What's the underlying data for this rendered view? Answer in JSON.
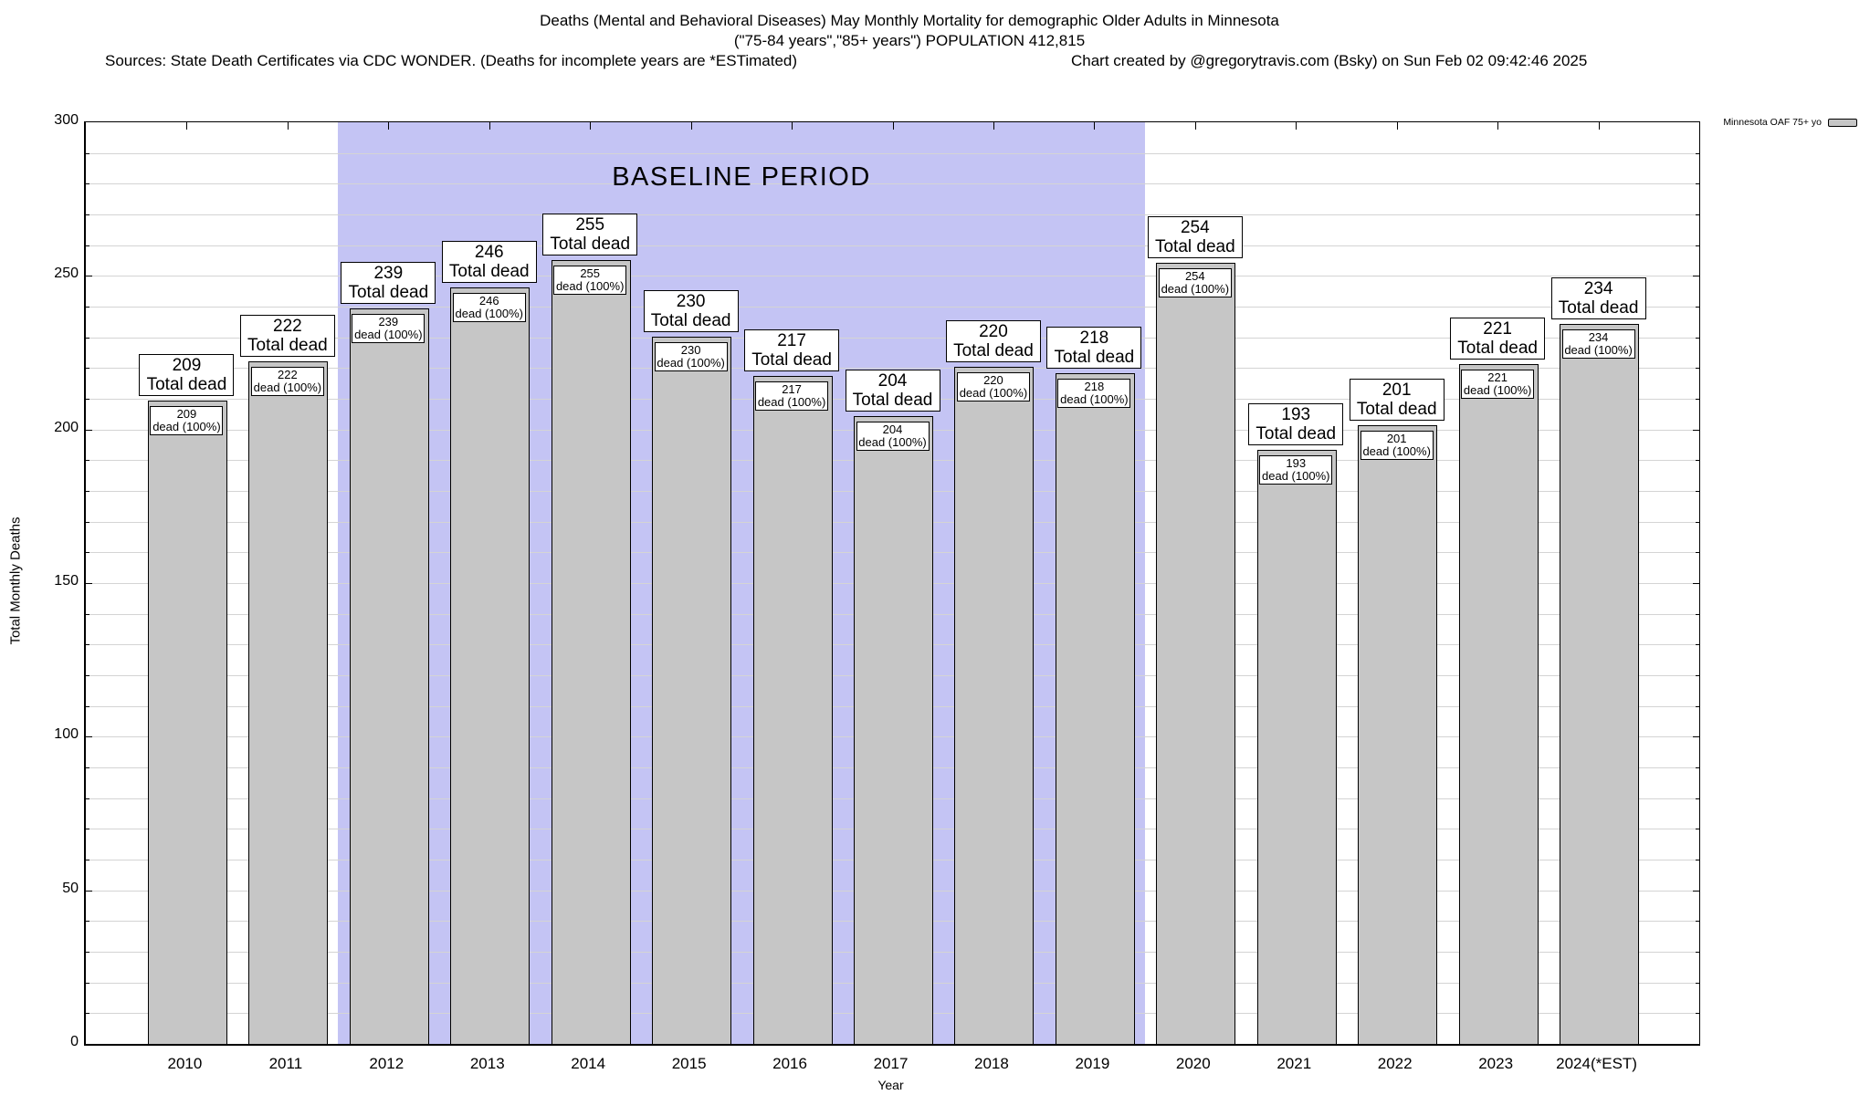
{
  "title": {
    "line1": "Deaths (Mental and Behavioral Diseases) May Monthly Mortality for demographic Older Adults in Minnesota",
    "line2": "(\"75-84 years\",\"85+ years\") POPULATION 412,815",
    "sources": "Sources: State Death Certificates via CDC WONDER. (Deaths for incomplete years are *ESTimated)",
    "credit": "Chart created by @gregorytravis.com (Bsky) on Sun Feb 02 09:42:46 2025"
  },
  "legend": {
    "label": "Minnesota OAF 75+ yo"
  },
  "axes": {
    "y_label": "Total Monthly Deaths",
    "x_label": "Year",
    "y_ticks": [
      0,
      50,
      100,
      150,
      200,
      250,
      300
    ],
    "y_minor_step": 10
  },
  "annotations": {
    "baseline_label": "BASELINE PERIOD"
  },
  "bar_labels": {
    "big_suffix": "Total dead",
    "small_suffix": "dead (100%)"
  },
  "colors": {
    "bar_fill": "#c6c6c6",
    "band": "#c4c4f4",
    "grid": "#d4d4d4",
    "border": "#000000"
  },
  "chart_data": {
    "type": "bar",
    "categories": [
      "2010",
      "2011",
      "2012",
      "2013",
      "2014",
      "2015",
      "2016",
      "2017",
      "2018",
      "2019",
      "2020",
      "2021",
      "2022",
      "2023",
      "2024(*EST)"
    ],
    "series": [
      {
        "name": "Minnesota OAF 75+ yo",
        "values": [
          209,
          222,
          239,
          246,
          255,
          230,
          217,
          204,
          220,
          218,
          254,
          193,
          201,
          221,
          234
        ]
      }
    ],
    "title": "Deaths (Mental and Behavioral Diseases) May Monthly Mortality for demographic Older Adults in Minnesota",
    "xlabel": "Year",
    "ylabel": "Total Monthly Deaths",
    "ylim": [
      0,
      300
    ],
    "grid": true,
    "grid_step": 10,
    "legend_position": "top-right",
    "baseline_band": {
      "from": "2012",
      "to": "2019",
      "label": "BASELINE PERIOD"
    }
  }
}
